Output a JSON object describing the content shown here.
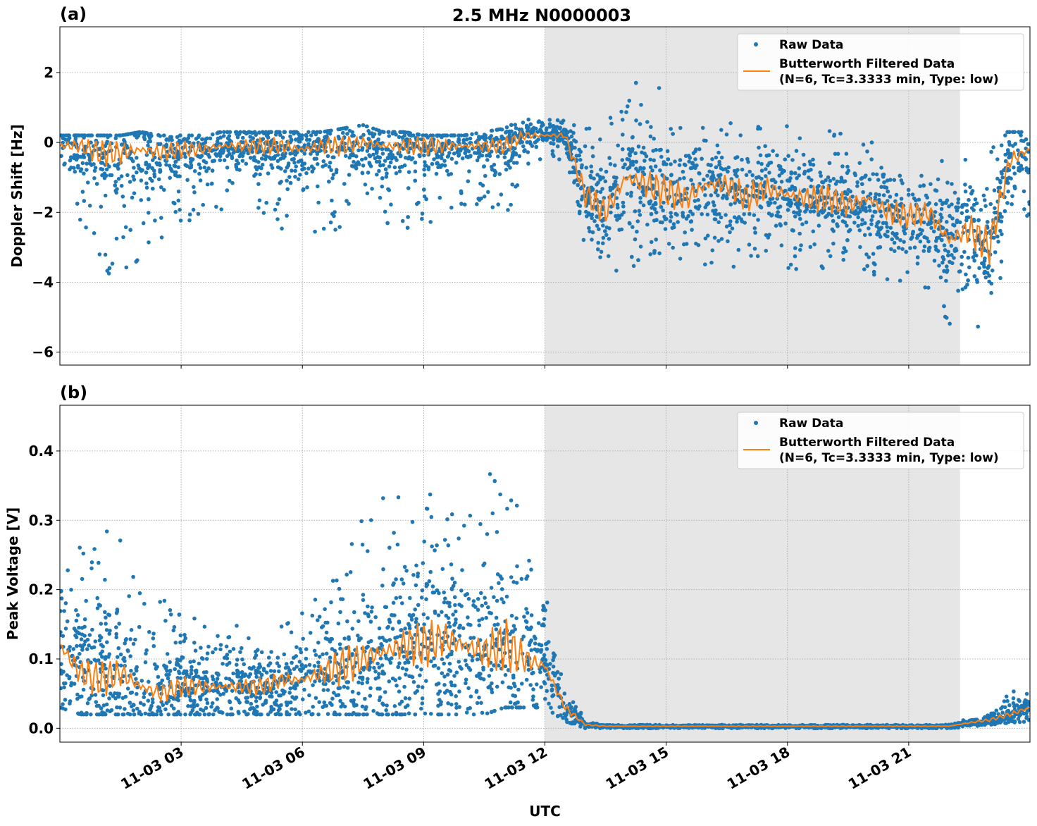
{
  "title": "2.5 MHz N0000003",
  "colors": {
    "raw": "#1f77b4",
    "filtered": "#ff7f0e",
    "shade": "#e6e6e6",
    "grid": "#b0b0b0"
  },
  "chart_data": [
    {
      "panel_label": "(a)",
      "type": "scatter+line",
      "ylabel": "Doppler Shift [Hz]",
      "xlabel": "",
      "xlim_hours_utc": [
        0,
        24
      ],
      "ylim": [
        -6.37,
        3.31
      ],
      "yticks": [
        -6,
        -4,
        -2,
        0,
        2
      ],
      "ytick_labels": [
        "−6",
        "−4",
        "−2",
        "0",
        "2"
      ],
      "grid": true,
      "shaded_interval_hours_utc": [
        12,
        22.27
      ],
      "legend": {
        "placement": "top-right",
        "entries": [
          "Raw Data",
          "Butterworth Filtered Data\n(N=6, Tc=3.3333 min, Type: low)"
        ],
        "line1": "Butterworth Filtered Data",
        "line2": "(N=6, Tc=3.3333 min, Type: low)"
      },
      "x_hours_utc": [
        0,
        0.5,
        1,
        1.5,
        2,
        2.5,
        3,
        3.5,
        4,
        4.5,
        5,
        5.5,
        6,
        6.5,
        7,
        7.5,
        8,
        8.5,
        9,
        9.5,
        10,
        10.5,
        11,
        11.5,
        12,
        12.5,
        13,
        13.5,
        14,
        14.5,
        15,
        15.5,
        16,
        16.5,
        17,
        17.5,
        18,
        18.5,
        19,
        19.5,
        20,
        20.5,
        21,
        21.5,
        22,
        22.5,
        23,
        23.5,
        24
      ],
      "series": [
        {
          "name": "Butterworth Filtered Data",
          "kind": "line",
          "values": [
            -0.1,
            -0.1,
            -0.3,
            -0.3,
            -0.2,
            -0.3,
            -0.2,
            -0.2,
            -0.1,
            -0.1,
            -0.1,
            -0.1,
            -0.2,
            -0.1,
            -0.1,
            0,
            -0.1,
            -0.1,
            -0.1,
            -0.1,
            -0.1,
            -0.1,
            -0.1,
            0.2,
            0.2,
            0.2,
            -1.5,
            -2.0,
            -1.0,
            -1.2,
            -1.4,
            -1.6,
            -1.2,
            -1.2,
            -1.6,
            -1.3,
            -1.5,
            -1.6,
            -1.6,
            -1.8,
            -1.6,
            -2.0,
            -2.1,
            -2.0,
            -2.8,
            -2.5,
            -3.0,
            -0.5,
            -0.2
          ]
        },
        {
          "name": "Raw Data",
          "kind": "scatter",
          "max_values": [
            0.2,
            0.2,
            0.2,
            0.2,
            0.3,
            0.2,
            0.2,
            0.2,
            0.3,
            0.3,
            0.3,
            0.3,
            0.3,
            0.3,
            0.4,
            0.5,
            0.3,
            0.3,
            0.2,
            0.2,
            0.2,
            0.3,
            0.4,
            0.7,
            0.7,
            0.7,
            0.5,
            1.0,
            1.5,
            2.2,
            1.5,
            1.2,
            1.0,
            0.5,
            0.8,
            0.5,
            0.5,
            0.3,
            0.5,
            0.5,
            0.0,
            0.0,
            -0.5,
            -0.5,
            -0.5,
            0.5,
            0.3,
            0.3,
            0.3
          ],
          "min_values": [
            -3.0,
            -2.5,
            -3.5,
            -4.3,
            -3.2,
            -2.8,
            -2.4,
            -2.0,
            -2.0,
            -1.9,
            -2.2,
            -2.6,
            -2.5,
            -2.6,
            -2.6,
            -1.5,
            -2.6,
            -2.5,
            -2.6,
            -2.3,
            -2.0,
            -1.9,
            -2.2,
            -1.0,
            -0.5,
            -0.5,
            -3.0,
            -4.0,
            -3.8,
            -3.2,
            -3.2,
            -3.4,
            -3.6,
            -3.7,
            -3.6,
            -3.5,
            -3.6,
            -4.6,
            -3.5,
            -3.7,
            -3.8,
            -4.4,
            -4.2,
            -4.2,
            -5.2,
            -5.9,
            -5.0,
            -3.0,
            -2.0
          ]
        }
      ]
    },
    {
      "panel_label": "(b)",
      "type": "scatter+line",
      "ylabel": "Peak Voltage [V]",
      "xlabel": "UTC",
      "xlim_hours_utc": [
        0,
        24
      ],
      "ylim": [
        -0.02,
        0.466
      ],
      "yticks": [
        0.0,
        0.1,
        0.2,
        0.3,
        0.4
      ],
      "ytick_labels": [
        "0.0",
        "0.1",
        "0.2",
        "0.3",
        "0.4"
      ],
      "xticks_hours_utc": [
        3,
        6,
        9,
        12,
        15,
        18,
        21
      ],
      "xtick_labels": [
        "11-03 03",
        "11-03 06",
        "11-03 09",
        "11-03 12",
        "11-03 15",
        "11-03 18",
        "11-03 21"
      ],
      "grid": true,
      "shaded_interval_hours_utc": [
        12,
        22.27
      ],
      "legend": {
        "placement": "top-right",
        "entries": [
          "Raw Data",
          "Butterworth Filtered Data\n(N=6, Tc=3.3333 min, Type: low)"
        ],
        "line1": "Butterworth Filtered Data",
        "line2": "(N=6, Tc=3.3333 min, Type: low)"
      },
      "x_hours_utc": [
        0,
        0.5,
        1,
        1.5,
        2,
        2.5,
        3,
        3.5,
        4,
        4.5,
        5,
        5.5,
        6,
        6.5,
        7,
        7.5,
        8,
        8.5,
        9,
        9.5,
        10,
        10.5,
        11,
        11.5,
        12,
        12.5,
        13,
        13.5,
        14,
        14.5,
        15,
        15.5,
        16,
        16.5,
        17,
        17.5,
        18,
        18.5,
        19,
        19.5,
        20,
        20.5,
        21,
        21.5,
        22,
        22.5,
        23,
        23.5,
        24
      ],
      "series": [
        {
          "name": "Butterworth Filtered Data",
          "kind": "line",
          "values": [
            0.12,
            0.08,
            0.07,
            0.08,
            0.06,
            0.05,
            0.06,
            0.06,
            0.06,
            0.06,
            0.06,
            0.07,
            0.07,
            0.08,
            0.09,
            0.1,
            0.11,
            0.12,
            0.12,
            0.13,
            0.12,
            0.11,
            0.12,
            0.1,
            0.09,
            0.03,
            0.005,
            0.003,
            0.003,
            0.003,
            0.003,
            0.003,
            0.003,
            0.003,
            0.003,
            0.003,
            0.003,
            0.003,
            0.003,
            0.003,
            0.003,
            0.003,
            0.003,
            0.003,
            0.003,
            0.008,
            0.012,
            0.02,
            0.03
          ]
        },
        {
          "name": "Raw Data",
          "kind": "scatter",
          "max_values": [
            0.25,
            0.27,
            0.29,
            0.28,
            0.21,
            0.19,
            0.17,
            0.16,
            0.16,
            0.15,
            0.15,
            0.16,
            0.18,
            0.22,
            0.32,
            0.3,
            0.35,
            0.33,
            0.37,
            0.34,
            0.39,
            0.34,
            0.44,
            0.3,
            0.22,
            0.08,
            0.01,
            0.005,
            0.005,
            0.005,
            0.005,
            0.005,
            0.005,
            0.005,
            0.005,
            0.005,
            0.005,
            0.005,
            0.005,
            0.005,
            0.005,
            0.005,
            0.005,
            0.005,
            0.006,
            0.015,
            0.025,
            0.05,
            0.07
          ],
          "min_values": [
            0.03,
            0.02,
            0.02,
            0.02,
            0.02,
            0.02,
            0.02,
            0.02,
            0.02,
            0.02,
            0.02,
            0.02,
            0.02,
            0.02,
            0.02,
            0.02,
            0.02,
            0.02,
            0.02,
            0.02,
            0.02,
            0.02,
            0.03,
            0.03,
            0.03,
            0.01,
            0.0,
            0.0,
            0.0,
            0.0,
            0.0,
            0.0,
            0.0,
            0.0,
            0.0,
            0.0,
            0.0,
            0.0,
            0.0,
            0.0,
            0.0,
            0.0,
            0.0,
            0.0,
            0.0,
            0.002,
            0.005,
            0.008,
            0.01
          ]
        }
      ]
    }
  ]
}
